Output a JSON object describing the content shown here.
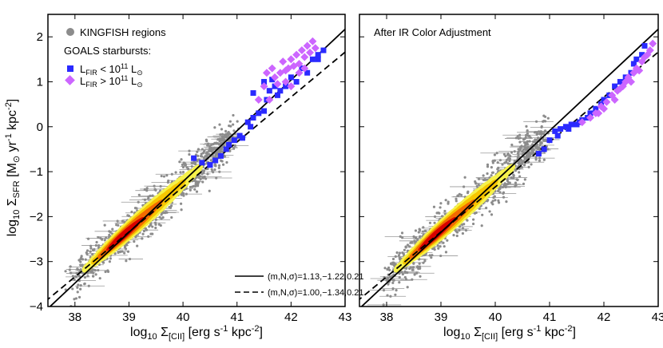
{
  "chart_data": [
    {
      "type": "scatter",
      "panel": "left",
      "title": "",
      "xlabel_parts": [
        "log",
        "10",
        " Σ",
        "[CII]",
        " [erg s",
        "-1",
        " kpc",
        "-2",
        "]"
      ],
      "ylabel_parts": [
        "log",
        "10",
        " Σ",
        "SFR",
        " [M",
        "⊙",
        " yr",
        "-1",
        " kpc",
        "-2",
        "]"
      ],
      "xlim": [
        37.5,
        43.0
      ],
      "ylim": [
        -4.0,
        2.5
      ],
      "xticks": [
        38,
        39,
        40,
        41,
        42,
        43
      ],
      "yticks": [
        -4,
        -3,
        -2,
        -1,
        0,
        1,
        2
      ],
      "legend": {
        "kingfish": "KINGFISH regions",
        "goals_header": "GOALS starbursts:",
        "low": {
          "base": "L",
          "sub": "FIR",
          "mid": " < 10",
          "sup": "11",
          "tail": " L",
          "tailsub": "⊙"
        },
        "high": {
          "base": "L",
          "sub": "FIR",
          "mid": " > 10",
          "sup": "11",
          "tail": " L",
          "tailsub": "⊙"
        }
      },
      "fits": [
        {
          "label": "(m,N,σ)=1.13,−1.22,0.21",
          "style": "solid",
          "slope": 1.13,
          "x0": 40,
          "y0": -1.22,
          "sigma": 0.21
        },
        {
          "label": "(m,N,σ)=1.00,−1.34,0.21",
          "style": "dashed",
          "slope": 1.0,
          "x0": 40,
          "y0": -1.34,
          "sigma": 0.21
        }
      ],
      "kingfish_density_ridge": {
        "x": [
          38.4,
          38.8,
          39.2,
          39.6,
          40.0,
          40.4
        ],
        "y": [
          -2.95,
          -2.55,
          -2.1,
          -1.65,
          -1.2,
          -0.8
        ]
      },
      "goals_low": [
        [
          40.2,
          -0.7
        ],
        [
          40.35,
          -0.8
        ],
        [
          40.5,
          -0.85
        ],
        [
          40.6,
          -0.75
        ],
        [
          40.8,
          -0.5
        ],
        [
          40.85,
          -0.4
        ],
        [
          40.95,
          -0.3
        ],
        [
          41.05,
          -0.2
        ],
        [
          41.1,
          -0.25
        ],
        [
          41.2,
          0.1
        ],
        [
          41.25,
          0.0
        ],
        [
          41.3,
          0.2
        ],
        [
          41.4,
          0.3
        ],
        [
          41.5,
          0.35
        ],
        [
          41.55,
          0.6
        ],
        [
          41.6,
          0.8
        ],
        [
          41.7,
          0.9
        ],
        [
          41.75,
          0.7
        ],
        [
          41.8,
          0.8
        ],
        [
          41.9,
          0.9
        ],
        [
          42.0,
          1.1
        ],
        [
          42.1,
          1.0
        ],
        [
          42.2,
          1.3
        ],
        [
          42.3,
          1.2
        ],
        [
          42.4,
          1.5
        ],
        [
          42.5,
          1.6
        ],
        [
          42.6,
          1.7
        ],
        [
          42.5,
          1.5
        ],
        [
          41.3,
          0.75
        ],
        [
          41.5,
          1.0
        ],
        [
          41.65,
          1.05
        ],
        [
          40.5,
          -0.85
        ],
        [
          40.7,
          -0.65
        ]
      ],
      "goals_high": [
        [
          41.4,
          0.6
        ],
        [
          41.5,
          0.9
        ],
        [
          41.55,
          1.2
        ],
        [
          41.65,
          1.3
        ],
        [
          41.7,
          1.1
        ],
        [
          41.8,
          1.2
        ],
        [
          41.85,
          1.45
        ],
        [
          41.9,
          1.0
        ],
        [
          41.95,
          1.3
        ],
        [
          42.0,
          1.5
        ],
        [
          42.05,
          1.35
        ],
        [
          42.1,
          1.6
        ],
        [
          42.15,
          1.4
        ],
        [
          42.2,
          1.7
        ],
        [
          42.25,
          1.55
        ],
        [
          42.3,
          1.8
        ],
        [
          42.35,
          1.65
        ],
        [
          42.4,
          1.9
        ],
        [
          42.45,
          1.75
        ],
        [
          42.15,
          1.2
        ],
        [
          42.0,
          0.9
        ],
        [
          41.75,
          0.95
        ],
        [
          41.6,
          0.6
        ],
        [
          42.25,
          1.3
        ],
        [
          41.9,
          1.25
        ]
      ]
    },
    {
      "type": "scatter",
      "panel": "right",
      "title": "After IR Color Adjustment",
      "xlabel_parts": [
        "log",
        "10",
        " Σ",
        "[CII]",
        " [erg s",
        "-1",
        " kpc",
        "-2",
        "]"
      ],
      "xlim": [
        37.5,
        43.0
      ],
      "ylim": [
        -4.0,
        2.5
      ],
      "xticks": [
        38,
        39,
        40,
        41,
        42,
        43
      ],
      "yticks": [
        -4,
        -3,
        -2,
        -1,
        0,
        1,
        2
      ],
      "fits": [
        {
          "style": "solid",
          "slope": 1.13,
          "x0": 40,
          "y0": -1.22
        },
        {
          "style": "dashed",
          "slope": 1.0,
          "x0": 40,
          "y0": -1.34
        }
      ],
      "kingfish_density_ridge": {
        "x": [
          38.4,
          38.8,
          39.2,
          39.6,
          40.0,
          40.4
        ],
        "y": [
          -2.95,
          -2.55,
          -2.1,
          -1.65,
          -1.2,
          -0.8
        ]
      },
      "goals_low": [
        [
          40.8,
          -0.6
        ],
        [
          40.9,
          -0.5
        ],
        [
          41.0,
          -0.3
        ],
        [
          41.1,
          -0.1
        ],
        [
          41.2,
          -0.05
        ],
        [
          41.3,
          0.0
        ],
        [
          41.4,
          0.05
        ],
        [
          41.5,
          0.05
        ],
        [
          41.55,
          0.1
        ],
        [
          41.7,
          0.2
        ],
        [
          41.75,
          0.3
        ],
        [
          41.85,
          0.4
        ],
        [
          41.95,
          0.5
        ],
        [
          42.0,
          0.6
        ],
        [
          42.1,
          0.7
        ],
        [
          42.2,
          0.9
        ],
        [
          42.3,
          1.0
        ],
        [
          42.4,
          1.1
        ],
        [
          42.5,
          1.2
        ],
        [
          42.55,
          1.4
        ],
        [
          42.6,
          1.5
        ],
        [
          42.7,
          1.6
        ],
        [
          42.75,
          1.8
        ],
        [
          41.15,
          -0.2
        ],
        [
          41.35,
          -0.05
        ],
        [
          41.6,
          0.15
        ]
      ],
      "goals_high": [
        [
          41.6,
          0.1
        ],
        [
          41.75,
          0.2
        ],
        [
          41.85,
          0.3
        ],
        [
          41.95,
          0.45
        ],
        [
          42.05,
          0.55
        ],
        [
          42.15,
          0.7
        ],
        [
          42.2,
          0.6
        ],
        [
          42.3,
          0.85
        ],
        [
          42.35,
          0.9
        ],
        [
          42.4,
          1.0
        ],
        [
          42.45,
          1.1
        ],
        [
          42.55,
          1.2
        ],
        [
          42.6,
          1.3
        ],
        [
          42.65,
          1.25
        ],
        [
          42.7,
          1.45
        ],
        [
          42.8,
          1.6
        ],
        [
          42.85,
          1.7
        ],
        [
          42.9,
          1.85
        ],
        [
          42.25,
          0.8
        ],
        [
          42.5,
          1.0
        ],
        [
          42.0,
          0.4
        ],
        [
          41.9,
          0.3
        ],
        [
          42.75,
          1.55
        ]
      ]
    }
  ],
  "colors": {
    "kingfish": "#8c8c8c",
    "goals_low": "#2a2aff",
    "goals_high": "#cc66ff",
    "density": [
      "#f6f24a",
      "#f7c600",
      "#f26a00",
      "#d80000"
    ]
  }
}
